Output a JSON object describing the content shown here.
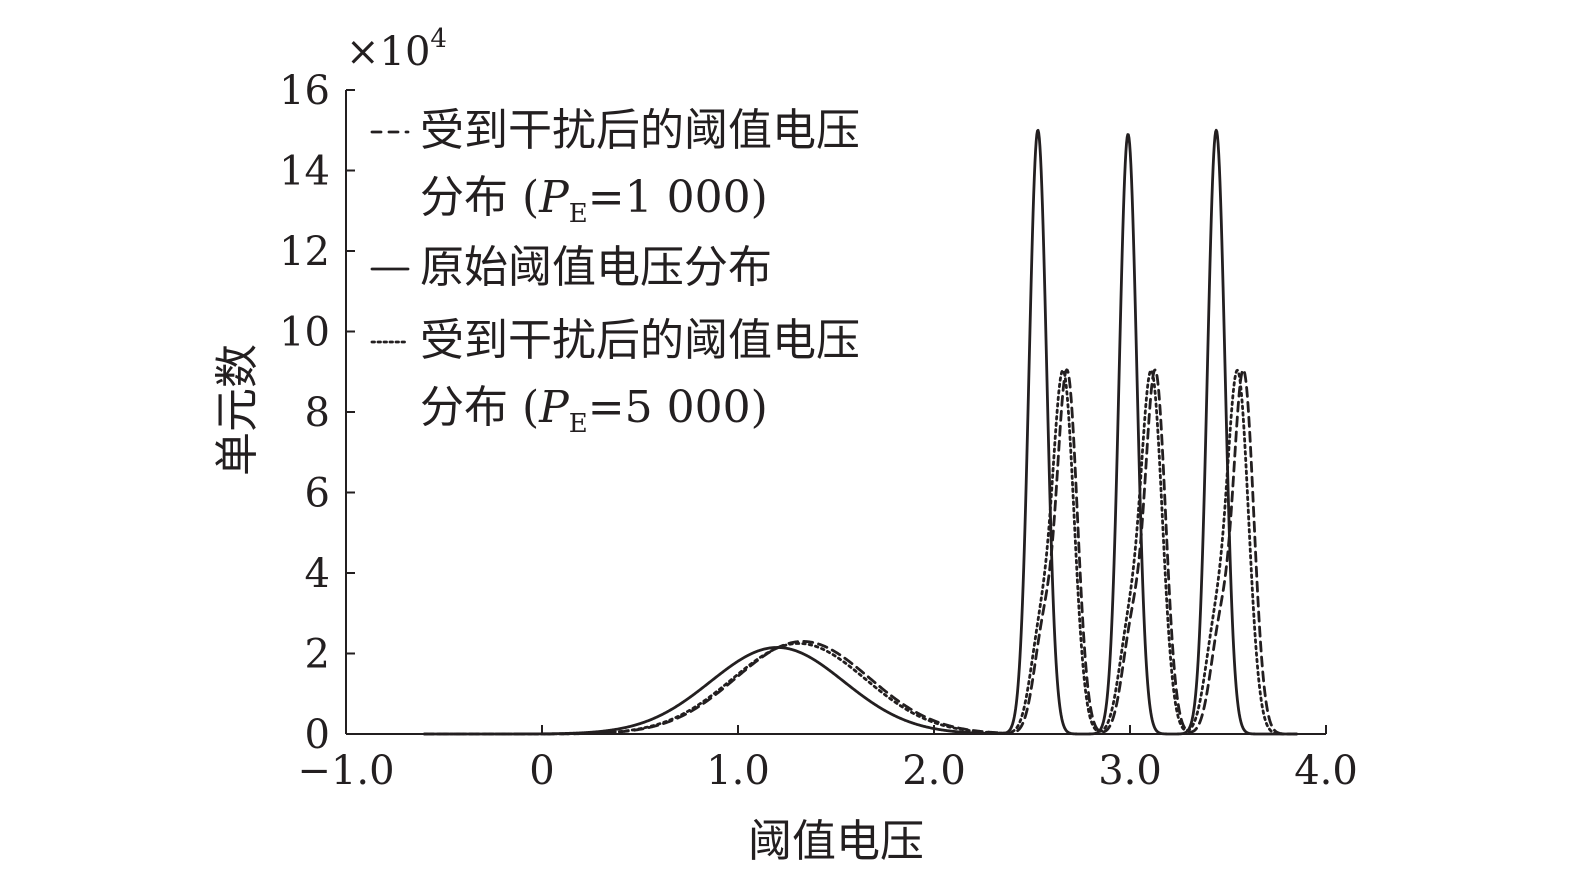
{
  "chart_data": {
    "type": "line",
    "xlabel": "阈值电压",
    "ylabel": "单元数",
    "y_multiplier": "×10",
    "y_multiplier_exp": "4",
    "xlim": [
      -1.0,
      4.0
    ],
    "ylim": [
      0,
      16
    ],
    "x_ticks": [
      {
        "value": -1.0,
        "label": "−1.0"
      },
      {
        "value": 0,
        "label": "0"
      },
      {
        "value": 1.0,
        "label": "1.0"
      },
      {
        "value": 2.0,
        "label": "2.0"
      },
      {
        "value": 3.0,
        "label": "3.0"
      },
      {
        "value": 4.0,
        "label": "4.0"
      }
    ],
    "y_ticks": [
      {
        "value": 0,
        "label": "0"
      },
      {
        "value": 2,
        "label": "2"
      },
      {
        "value": 4,
        "label": "4"
      },
      {
        "value": 6,
        "label": "6"
      },
      {
        "value": 8,
        "label": "8"
      },
      {
        "value": 10,
        "label": "10"
      },
      {
        "value": 12,
        "label": "12"
      },
      {
        "value": 14,
        "label": "14"
      },
      {
        "value": 16,
        "label": "16"
      }
    ],
    "grid": false,
    "legend_position": "top-left",
    "legend": [
      {
        "style": "dashed",
        "lines": [
          "受到干扰后的阈值电压",
          "分布 (",
          "P",
          "E",
          "=1 000)"
        ]
      },
      {
        "style": "solid",
        "lines": [
          "原始阈值电压分布"
        ]
      },
      {
        "style": "dotted",
        "lines": [
          "受到干扰后的阈值电压",
          "分布 (",
          "P",
          "E",
          "=5 000)"
        ]
      }
    ],
    "series": [
      {
        "name": "受到干扰后的阈值电压分布 (PE=1 000)",
        "style": "dashed",
        "components": [
          {
            "mu": 1.33,
            "sigma": 0.34,
            "amp": 2.3
          },
          {
            "mu": 2.68,
            "sigma": 0.052,
            "amp": 8.9
          },
          {
            "mu": 2.56,
            "sigma": 0.05,
            "amp": 2.5
          },
          {
            "mu": 3.13,
            "sigma": 0.052,
            "amp": 8.9
          },
          {
            "mu": 3.01,
            "sigma": 0.05,
            "amp": 2.5
          },
          {
            "mu": 3.58,
            "sigma": 0.052,
            "amp": 8.9
          },
          {
            "mu": 3.46,
            "sigma": 0.05,
            "amp": 2.5
          }
        ],
        "x_range": [
          -0.6,
          3.85
        ]
      },
      {
        "name": "原始阈值电压分布",
        "style": "solid",
        "components": [
          {
            "mu": 1.2,
            "sigma": 0.34,
            "amp": 2.15
          },
          {
            "mu": 2.53,
            "sigma": 0.045,
            "amp": 15.0
          },
          {
            "mu": 2.99,
            "sigma": 0.045,
            "amp": 14.9
          },
          {
            "mu": 3.44,
            "sigma": 0.045,
            "amp": 15.0
          }
        ],
        "x_range": [
          -0.6,
          3.85
        ]
      },
      {
        "name": "受到干扰后的阈值电压分布 (PE=5 000)",
        "style": "dotted",
        "components": [
          {
            "mu": 1.31,
            "sigma": 0.34,
            "amp": 2.25
          },
          {
            "mu": 2.66,
            "sigma": 0.055,
            "amp": 8.9
          },
          {
            "mu": 2.54,
            "sigma": 0.05,
            "amp": 2.3
          },
          {
            "mu": 3.11,
            "sigma": 0.055,
            "amp": 8.9
          },
          {
            "mu": 2.99,
            "sigma": 0.05,
            "amp": 2.3
          },
          {
            "mu": 3.55,
            "sigma": 0.055,
            "amp": 8.9
          },
          {
            "mu": 3.43,
            "sigma": 0.05,
            "amp": 2.3
          }
        ],
        "x_range": [
          -0.6,
          3.85
        ]
      }
    ]
  }
}
